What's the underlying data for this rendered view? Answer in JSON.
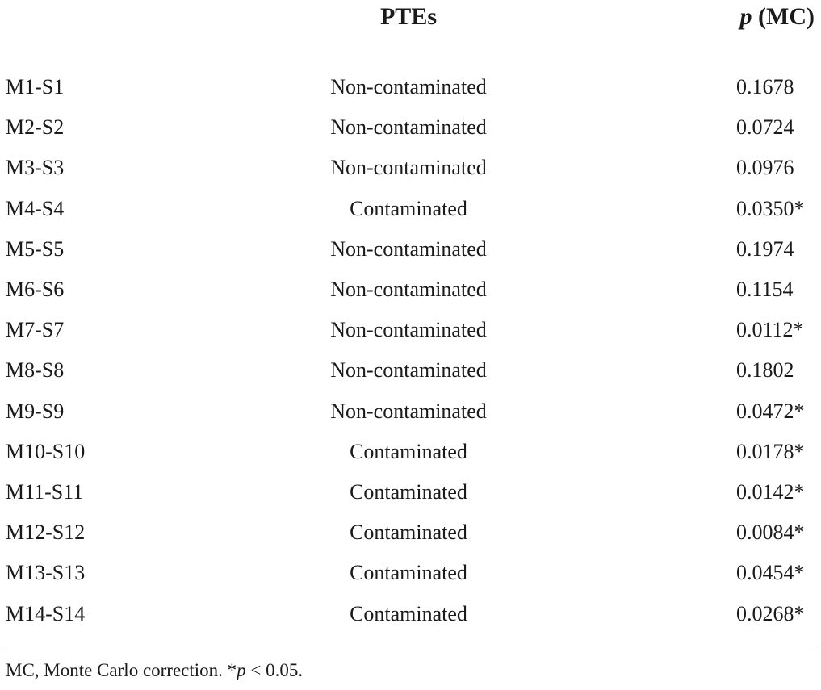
{
  "table": {
    "headers": {
      "sample": "",
      "ptes": "PTEs",
      "p_symbol": "p",
      "p_suffix": " (MC)"
    },
    "rows": [
      {
        "sample": "M1-S1",
        "ptes": "Non-contaminated",
        "p": "0.1678"
      },
      {
        "sample": "M2-S2",
        "ptes": "Non-contaminated",
        "p": "0.0724"
      },
      {
        "sample": "M3-S3",
        "ptes": "Non-contaminated",
        "p": "0.0976"
      },
      {
        "sample": "M4-S4",
        "ptes": "Contaminated",
        "p": "0.0350*"
      },
      {
        "sample": "M5-S5",
        "ptes": "Non-contaminated",
        "p": "0.1974"
      },
      {
        "sample": "M6-S6",
        "ptes": "Non-contaminated",
        "p": "0.1154"
      },
      {
        "sample": "M7-S7",
        "ptes": "Non-contaminated",
        "p": "0.0112*"
      },
      {
        "sample": "M8-S8",
        "ptes": "Non-contaminated",
        "p": "0.1802"
      },
      {
        "sample": "M9-S9",
        "ptes": "Non-contaminated",
        "p": "0.0472*"
      },
      {
        "sample": "M10-S10",
        "ptes": "Contaminated",
        "p": "0.0178*"
      },
      {
        "sample": "M11-S11",
        "ptes": "Contaminated",
        "p": "0.0142*"
      },
      {
        "sample": "M12-S12",
        "ptes": "Contaminated",
        "p": "0.0084*"
      },
      {
        "sample": "M13-S13",
        "ptes": "Contaminated",
        "p": "0.0454*"
      },
      {
        "sample": "M14-S14",
        "ptes": "Contaminated",
        "p": "0.0268*"
      }
    ]
  },
  "footnote": {
    "text_before": "MC, Monte Carlo correction. *",
    "p_symbol": "p",
    "text_after": " < 0.05."
  }
}
